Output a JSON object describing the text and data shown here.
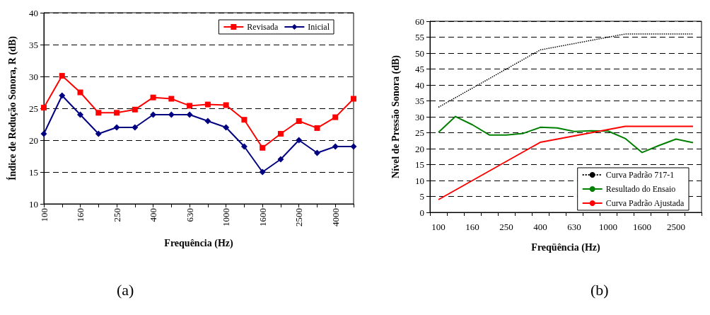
{
  "chart_data": [
    {
      "type": "line",
      "xlabel": "Frequência (Hz)",
      "ylabel": "Índice de Redução Sonora, R (dB)",
      "categories": [
        "100",
        null,
        "160",
        null,
        "250",
        null,
        "400",
        null,
        "630",
        null,
        "1000",
        null,
        "1600",
        null,
        "2500",
        null,
        "4000",
        null
      ],
      "series": [
        {
          "name": "Revisada",
          "color": "#ff0000",
          "marker": "square",
          "values": [
            25.1,
            30.1,
            27.5,
            24.3,
            24.3,
            24.8,
            26.7,
            26.5,
            25.4,
            25.6,
            25.5,
            23.2,
            18.8,
            21,
            23,
            21.9,
            23.6,
            26.5
          ]
        },
        {
          "name": "Inicial",
          "color": "#000080",
          "marker": "diamond",
          "values": [
            21,
            27,
            24,
            21,
            22,
            22,
            24,
            24,
            24,
            23,
            22,
            19,
            15,
            17,
            20,
            18,
            19,
            19
          ]
        }
      ],
      "ylim": [
        10,
        40
      ],
      "yticks": [
        10,
        15,
        20,
        25,
        30,
        35,
        40
      ],
      "grid": "y",
      "legend": "top right",
      "annotations": [
        "(a)"
      ]
    },
    {
      "type": "line",
      "xlabel": "Freqüência (Hz)",
      "ylabel": "Nível de Pressão Sonora (dB)",
      "categories": [
        "100",
        null,
        "160",
        null,
        "250",
        null,
        "400",
        null,
        "630",
        null,
        "1000",
        null,
        "1600",
        null,
        "2500",
        null
      ],
      "series": [
        {
          "name": "Curva Padrão 717-1",
          "color": "#000000",
          "line_style": "dotted",
          "values": [
            33,
            36,
            39,
            42,
            45,
            48,
            51,
            52,
            53,
            54,
            55,
            56,
            56,
            56,
            56,
            56
          ]
        },
        {
          "name": "Resultado do Ensaio",
          "color": "#008000",
          "values": [
            25.1,
            30.1,
            27.5,
            24.3,
            24.3,
            24.8,
            26.7,
            26.5,
            25.4,
            25.6,
            25.5,
            23.2,
            18.8,
            21,
            23,
            21.9
          ]
        },
        {
          "name": "Curva Padrão Ajustada",
          "color": "#ff0000",
          "values": [
            4,
            7,
            10,
            13,
            16,
            19,
            22,
            23,
            24,
            25,
            26,
            27,
            27,
            27,
            27,
            27
          ]
        }
      ],
      "ylim": [
        0,
        60
      ],
      "yticks": [
        0,
        5,
        10,
        15,
        20,
        25,
        30,
        35,
        40,
        45,
        50,
        55,
        60
      ],
      "grid": "y",
      "legend": "bottom right",
      "marker": "none",
      "annotations": [
        "(b)"
      ]
    }
  ]
}
